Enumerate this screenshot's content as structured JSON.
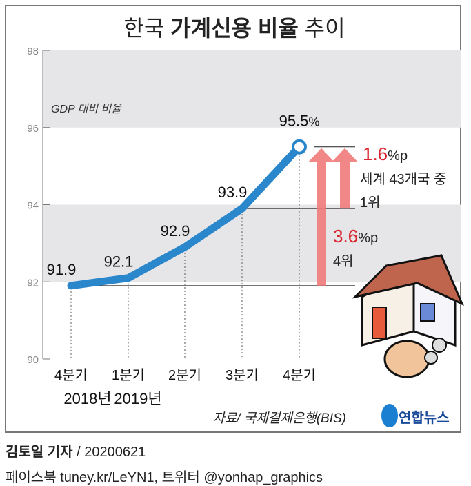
{
  "chart_data": {
    "type": "line",
    "title_prefix": "한국",
    "title_bold": "가계신용 비율",
    "title_suffix": "추이",
    "ylabel": "GDP 대비 비율",
    "ylim": [
      90,
      98
    ],
    "yticks": [
      "90",
      "92",
      "94",
      "96",
      "98"
    ],
    "categories": [
      "4분기",
      "1분기",
      "2분기",
      "3분기",
      "4분기"
    ],
    "year_labels": [
      "2018년",
      "2019년"
    ],
    "values": [
      91.9,
      92.1,
      92.9,
      93.9,
      95.5
    ],
    "value_labels": [
      "91.9",
      "92.1",
      "92.9",
      "93.9",
      "95.5"
    ],
    "last_suffix": "%",
    "annotations": {
      "a1_value": "1.6",
      "a1_unit": "%p",
      "a1_line1": "세계 43개국 중",
      "a1_line2": "1위",
      "a2_value": "3.6",
      "a2_unit": "%p",
      "a2_line1": "4위"
    },
    "source": "자료/ 국제결제은행(BIS)",
    "colors": {
      "line": "#2a87cc",
      "band": "#e6e6e8",
      "arrow": "#f07a7a",
      "accent": "#d9232d"
    }
  },
  "logo": "연합뉴스",
  "credit": {
    "author": "김토일 기자",
    "date": "/ 20200621",
    "social": "페이스북 tuney.kr/LeYN1, 트위터 @yonhap_graphics"
  }
}
